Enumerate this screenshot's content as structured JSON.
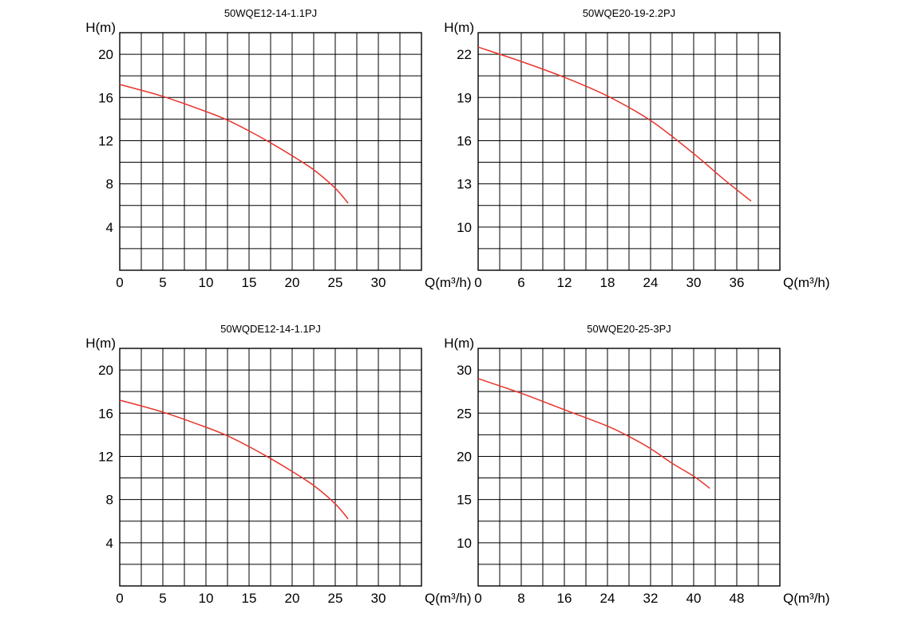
{
  "chart_data": [
    {
      "type": "line",
      "title": "50WQE12-14-1.1PJ",
      "ylabel": "H(m)",
      "xlabel": "Q(m³/h)",
      "xlim": [
        0,
        35
      ],
      "ylim": [
        0,
        22
      ],
      "x_ticks": [
        "0",
        "5",
        "10",
        "15",
        "20",
        "25",
        "30"
      ],
      "y_ticks": [
        "4",
        "8",
        "12",
        "16",
        "20"
      ],
      "grid": true,
      "line_color": "#e8342c",
      "series": [
        {
          "x": [
            0,
            5,
            10,
            12.5,
            15,
            17.5,
            20,
            22.5,
            25,
            26.5
          ],
          "y": [
            17.2,
            16.1,
            14.7,
            13.9,
            12.9,
            11.8,
            10.6,
            9.3,
            7.6,
            6.2
          ]
        }
      ]
    },
    {
      "type": "line",
      "title": "50WQE20-19-2.2PJ",
      "ylabel": "H(m)",
      "xlabel": "Q(m³/h)",
      "xlim": [
        0,
        42
      ],
      "ylim": [
        7,
        23.5
      ],
      "x_ticks": [
        "0",
        "6",
        "12",
        "18",
        "24",
        "30",
        "36"
      ],
      "y_ticks": [
        "10",
        "13",
        "16",
        "19",
        "22"
      ],
      "grid": true,
      "line_color": "#e8342c",
      "series": [
        {
          "x": [
            0,
            6,
            12,
            18,
            24,
            30,
            34,
            38
          ],
          "y": [
            22.5,
            21.5,
            20.4,
            19.1,
            17.4,
            15.1,
            13.4,
            11.8
          ]
        }
      ]
    },
    {
      "type": "line",
      "title": "50WQDE12-14-1.1PJ",
      "ylabel": "H(m)",
      "xlabel": "Q(m³/h)",
      "xlim": [
        0,
        35
      ],
      "ylim": [
        0,
        22
      ],
      "x_ticks": [
        "0",
        "5",
        "10",
        "15",
        "20",
        "25",
        "30"
      ],
      "y_ticks": [
        "4",
        "8",
        "12",
        "16",
        "20"
      ],
      "grid": true,
      "line_color": "#e8342c",
      "series": [
        {
          "x": [
            0,
            5,
            10,
            12.5,
            15,
            17.5,
            20,
            22.5,
            25,
            26.5
          ],
          "y": [
            17.2,
            16.1,
            14.7,
            13.9,
            12.9,
            11.8,
            10.6,
            9.3,
            7.6,
            6.2
          ]
        }
      ]
    },
    {
      "type": "line",
      "title": "50WQE20-25-3PJ",
      "ylabel": "H(m)",
      "xlabel": "Q(m³/h)",
      "xlim": [
        0,
        56
      ],
      "ylim": [
        5,
        32.5
      ],
      "x_ticks": [
        "0",
        "8",
        "16",
        "24",
        "32",
        "40",
        "48"
      ],
      "y_ticks": [
        "10",
        "15",
        "20",
        "25",
        "30"
      ],
      "grid": true,
      "line_color": "#e8342c",
      "series": [
        {
          "x": [
            0,
            8,
            16,
            24,
            28,
            32,
            36,
            40,
            43
          ],
          "y": [
            29,
            27.3,
            25.4,
            23.5,
            22.3,
            20.9,
            19.2,
            17.7,
            16.3
          ]
        }
      ]
    }
  ]
}
